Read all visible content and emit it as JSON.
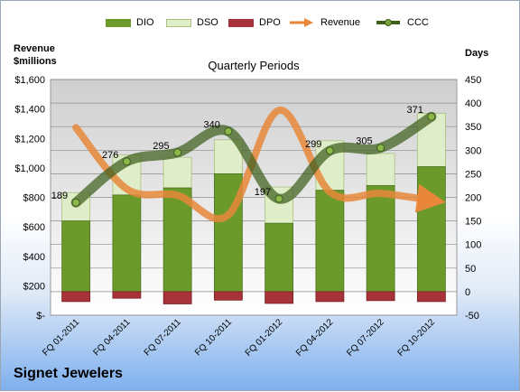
{
  "subtitle": "Quarterly Periods",
  "left_axis_title": [
    "Revenue",
    "$millions"
  ],
  "right_axis_title": "Days",
  "company": "Signet Jewelers",
  "colors": {
    "dio": "#6b9a2a",
    "dso": "#dfeec8",
    "dpo": "#a8323a",
    "revenue": "#e8873a",
    "ccc": "#3f5e1c",
    "plot_bg": "#c8c8c8"
  },
  "chart_data": {
    "type": "bar",
    "categories": [
      "FQ 01-2011",
      "FQ 04-2011",
      "FQ 07-2011",
      "FQ 10-2011",
      "FQ 01-2012",
      "FQ 04-2012",
      "FQ 07-2012",
      "FQ 10-2012"
    ],
    "series": [
      {
        "name": "DIO",
        "type": "stacked-bar",
        "axis": "right",
        "values": [
          150,
          205,
          220,
          250,
          145,
          215,
          225,
          265
        ]
      },
      {
        "name": "DSO",
        "type": "stacked-bar",
        "axis": "right",
        "values": [
          60,
          85,
          65,
          72,
          77,
          105,
          68,
          113
        ]
      },
      {
        "name": "DPO",
        "type": "stacked-bar",
        "axis": "right",
        "values": [
          -21,
          -14,
          -26,
          -18,
          -25,
          -21,
          -19,
          -21
        ]
      },
      {
        "name": "Revenue",
        "type": "line",
        "axis": "left",
        "values": [
          1273,
          857,
          814,
          681,
          1391,
          837,
          827,
          780
        ]
      },
      {
        "name": "CCC",
        "type": "line",
        "axis": "right",
        "values": [
          189,
          276,
          295,
          340,
          197,
          299,
          305,
          371
        ]
      }
    ],
    "data_labels": [
      "189",
      "276",
      "295",
      "340",
      "197",
      "299",
      "305",
      "371"
    ],
    "y_left": {
      "min": 0,
      "max": 1600,
      "ticks": [
        "$-",
        "$200",
        "$400",
        "$600",
        "$800",
        "$1,000",
        "$1,200",
        "$1,400",
        "$1,600"
      ]
    },
    "y_right": {
      "min": -50,
      "max": 450,
      "ticks": [
        "-50",
        "0",
        "50",
        "100",
        "150",
        "200",
        "250",
        "300",
        "350",
        "400",
        "450"
      ]
    },
    "legend": [
      "DIO",
      "DSO",
      "DPO",
      "Revenue",
      "CCC"
    ],
    "legend_position": "top",
    "grid": true
  }
}
